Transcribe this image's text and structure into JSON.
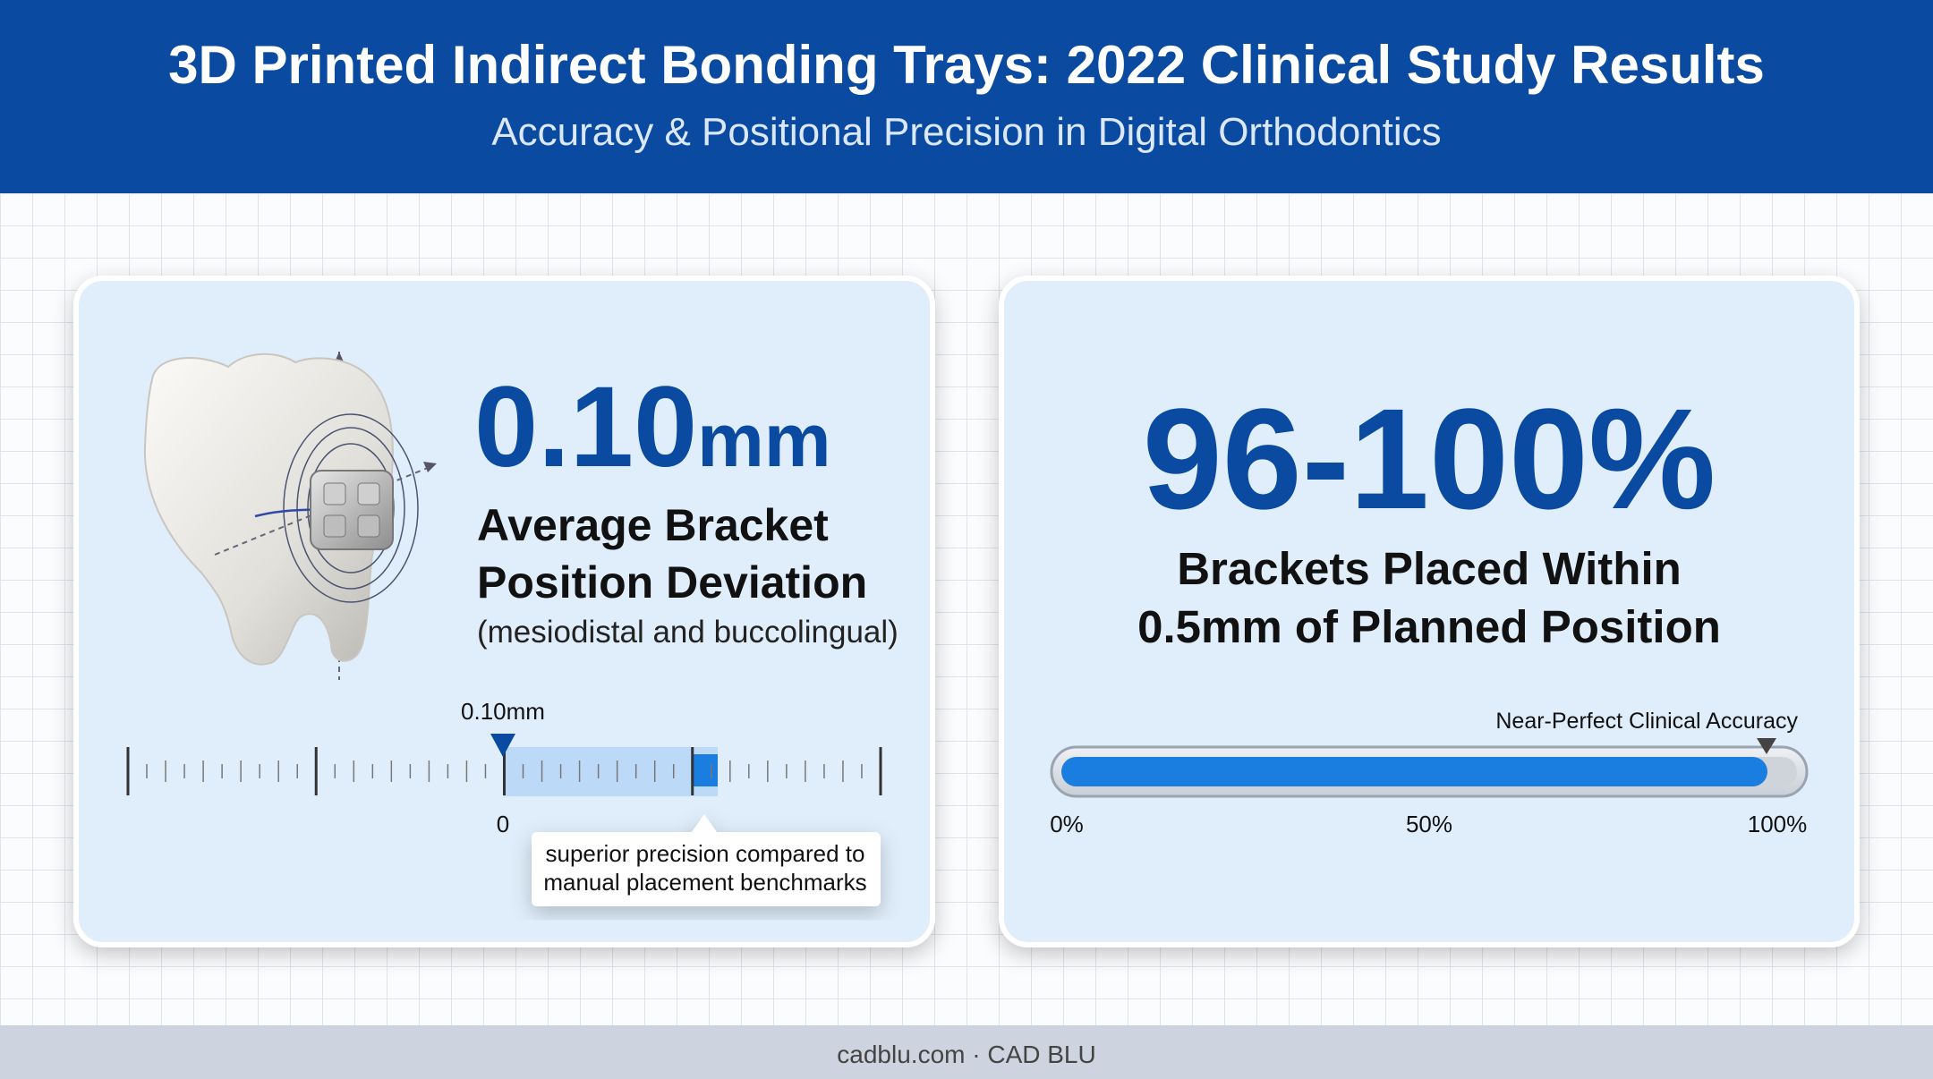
{
  "header": {
    "title": "3D Printed Indirect Bonding Trays: 2022 Clinical Study Results",
    "subtitle": "Accuracy & Positional Precision in Digital Orthodontics"
  },
  "left_card": {
    "stat_value": "0.10",
    "stat_unit": "mm",
    "label_lines": [
      "Average Bracket",
      "Position Deviation"
    ],
    "note": "(mesiodistal and buccolingual)",
    "scale_marker_label": "0.10mm",
    "scale_zero_label": "0",
    "callout_lines": [
      "superior precision compared to",
      "manual placement benchmarks"
    ]
  },
  "right_card": {
    "stat": "96-100%",
    "label_lines": [
      "Brackets Placed Within",
      "0.5mm of Planned Position"
    ],
    "bar_annotation": "Near-Perfect Clinical Accuracy",
    "bar_labels": [
      "0%",
      "50%",
      "100%"
    ]
  },
  "footer": {
    "text": "cadblu.com · CAD BLU"
  }
}
